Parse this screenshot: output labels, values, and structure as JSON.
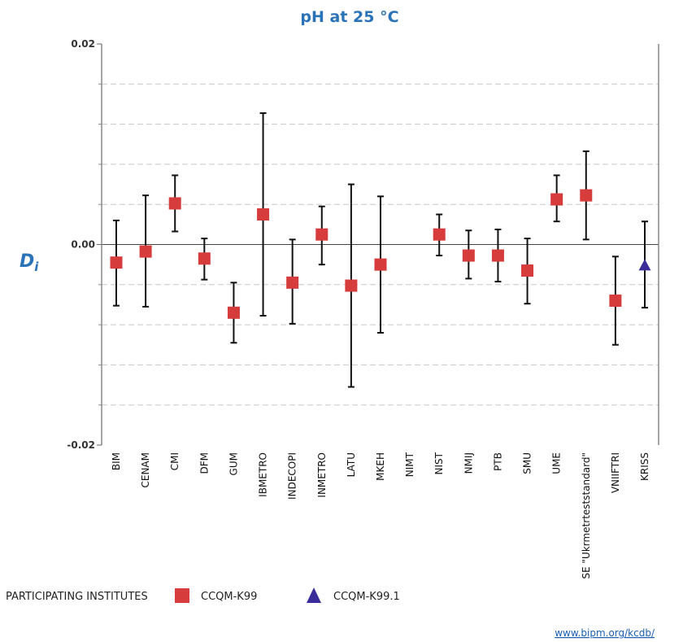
{
  "chart_data": {
    "type": "scatter",
    "title": "pH at 25 °C",
    "ylabel": "D",
    "ylabel_subscript": "i",
    "xlabel": "",
    "ylim": [
      -0.02,
      0.02
    ],
    "yticks": [
      "0.02",
      "0.00",
      "-0.02"
    ],
    "ytick_values": [
      0.02,
      0.0,
      -0.02
    ],
    "minor_gridlines": [
      0.016,
      0.012,
      0.008,
      0.004,
      -0.004,
      -0.008,
      -0.012,
      -0.016
    ],
    "grid": "dashed horizontal",
    "categories": [
      "BIM",
      "CENAM",
      "CMI",
      "DFM",
      "GUM",
      "IBMETRO",
      "INDECOPI",
      "INMETRO",
      "LATU",
      "MKEH",
      "NIMT",
      "NIST",
      "NMIJ",
      "PTB",
      "SMU",
      "UME",
      "SE \"Ukrmetrteststandard\"",
      "VNIIFTRI",
      "KRISS"
    ],
    "series": [
      {
        "name": "CCQM-K99",
        "marker": "square",
        "color": "#d63c3c",
        "points": [
          {
            "category": "BIM",
            "y": -0.0018,
            "upper": 0.0024,
            "lower": -0.0061
          },
          {
            "category": "CENAM",
            "y": -0.0007,
            "upper": 0.0049,
            "lower": -0.0062
          },
          {
            "category": "CMI",
            "y": 0.0041,
            "upper": 0.0069,
            "lower": 0.0013
          },
          {
            "category": "DFM",
            "y": -0.0014,
            "upper": 0.0006,
            "lower": -0.0035
          },
          {
            "category": "GUM",
            "y": -0.0068,
            "upper": -0.0038,
            "lower": -0.0098
          },
          {
            "category": "IBMETRO",
            "y": 0.003,
            "upper": 0.0131,
            "lower": -0.0071
          },
          {
            "category": "INDECOPI",
            "y": -0.0038,
            "upper": 0.0005,
            "lower": -0.0079
          },
          {
            "category": "INMETRO",
            "y": 0.001,
            "upper": 0.0038,
            "lower": -0.002
          },
          {
            "category": "LATU",
            "y": -0.0041,
            "upper": 0.006,
            "lower": -0.0142
          },
          {
            "category": "MKEH",
            "y": -0.002,
            "upper": 0.0048,
            "lower": -0.0088
          },
          {
            "category": "NIST",
            "y": 0.001,
            "upper": 0.003,
            "lower": -0.0011
          },
          {
            "category": "NMIJ",
            "y": -0.0011,
            "upper": 0.0014,
            "lower": -0.0034
          },
          {
            "category": "PTB",
            "y": -0.0011,
            "upper": 0.0015,
            "lower": -0.0037
          },
          {
            "category": "SMU",
            "y": -0.0026,
            "upper": 0.0006,
            "lower": -0.0059
          },
          {
            "category": "UME",
            "y": 0.0045,
            "upper": 0.0069,
            "lower": 0.0023
          },
          {
            "category": "SE \"Ukrmetrteststandard\"",
            "y": 0.0049,
            "upper": 0.0093,
            "lower": 0.0005
          },
          {
            "category": "VNIIFTRI",
            "y": -0.0056,
            "upper": -0.0012,
            "lower": -0.01
          }
        ]
      },
      {
        "name": "CCQM-K99.1",
        "marker": "triangle",
        "color": "#3a2d9a",
        "points": [
          {
            "category": "KRISS",
            "y": -0.0021,
            "upper": 0.0023,
            "lower": -0.0063
          }
        ]
      }
    ]
  },
  "legend": {
    "heading": "PARTICIPATING INSTITUTES",
    "items": [
      "CCQM-K99",
      "CCQM-K99.1"
    ]
  },
  "footer": {
    "link": "www.bipm.org/kcdb/"
  }
}
